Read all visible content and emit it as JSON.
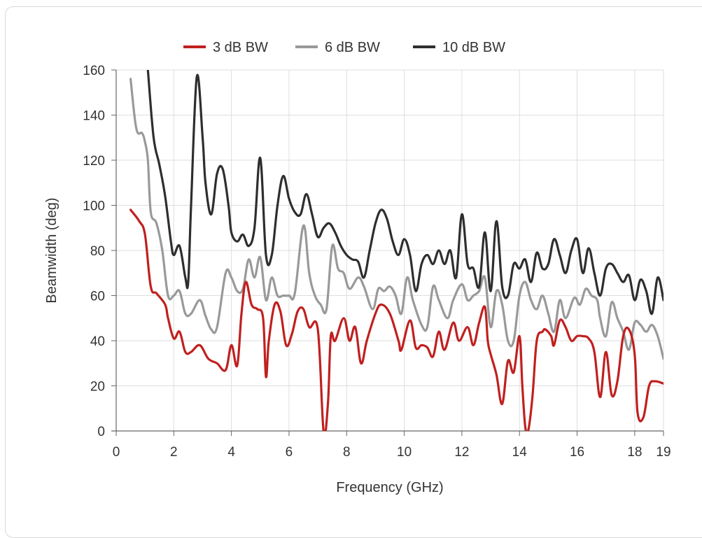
{
  "chart_data": {
    "type": "line",
    "xlabel": "Frequency (GHz)",
    "ylabel": "Beamwidth (deg)",
    "xlim": [
      0,
      19
    ],
    "ylim": [
      0,
      160
    ],
    "x_ticks": [
      0,
      2,
      4,
      6,
      8,
      10,
      12,
      14,
      16,
      18,
      19
    ],
    "y_ticks": [
      0,
      20,
      40,
      60,
      80,
      100,
      120,
      140,
      160
    ],
    "grid": true,
    "legend_position": "top-center",
    "series": [
      {
        "name": "3 dB BW",
        "color": "#c0201f",
        "points": [
          [
            0.5,
            98
          ],
          [
            0.8,
            93
          ],
          [
            1.0,
            87
          ],
          [
            1.2,
            64
          ],
          [
            1.4,
            61
          ],
          [
            1.7,
            56
          ],
          [
            1.8,
            50
          ],
          [
            2.0,
            41
          ],
          [
            2.2,
            44
          ],
          [
            2.4,
            35
          ],
          [
            2.6,
            35
          ],
          [
            2.9,
            38
          ],
          [
            3.2,
            32
          ],
          [
            3.5,
            30
          ],
          [
            3.8,
            27
          ],
          [
            4.0,
            38
          ],
          [
            4.2,
            29
          ],
          [
            4.35,
            52
          ],
          [
            4.5,
            66
          ],
          [
            4.7,
            56
          ],
          [
            4.9,
            54
          ],
          [
            5.1,
            50
          ],
          [
            5.2,
            24
          ],
          [
            5.3,
            40
          ],
          [
            5.5,
            56
          ],
          [
            5.7,
            53
          ],
          [
            5.9,
            38
          ],
          [
            6.1,
            43
          ],
          [
            6.3,
            53
          ],
          [
            6.5,
            54
          ],
          [
            6.7,
            46
          ],
          [
            7.0,
            45
          ],
          [
            7.2,
            0
          ],
          [
            7.35,
            12
          ],
          [
            7.45,
            42
          ],
          [
            7.6,
            40
          ],
          [
            7.9,
            50
          ],
          [
            8.1,
            40
          ],
          [
            8.3,
            46
          ],
          [
            8.5,
            30
          ],
          [
            8.7,
            40
          ],
          [
            9.0,
            52
          ],
          [
            9.2,
            56
          ],
          [
            9.5,
            52
          ],
          [
            9.8,
            40
          ],
          [
            9.9,
            36
          ],
          [
            10.2,
            49
          ],
          [
            10.4,
            37
          ],
          [
            10.6,
            38
          ],
          [
            10.8,
            37
          ],
          [
            11.0,
            33
          ],
          [
            11.2,
            44
          ],
          [
            11.4,
            36
          ],
          [
            11.7,
            48
          ],
          [
            11.9,
            40
          ],
          [
            12.2,
            46
          ],
          [
            12.4,
            38
          ],
          [
            12.6,
            48
          ],
          [
            12.8,
            55
          ],
          [
            12.9,
            40
          ],
          [
            13.0,
            34
          ],
          [
            13.2,
            25
          ],
          [
            13.4,
            12
          ],
          [
            13.6,
            31
          ],
          [
            13.8,
            26
          ],
          [
            14.0,
            42
          ],
          [
            14.1,
            20
          ],
          [
            14.2,
            2
          ],
          [
            14.3,
            0
          ],
          [
            14.45,
            15
          ],
          [
            14.6,
            40
          ],
          [
            14.8,
            44
          ],
          [
            14.9,
            45
          ],
          [
            15.1,
            42
          ],
          [
            15.2,
            38
          ],
          [
            15.4,
            49
          ],
          [
            15.6,
            46
          ],
          [
            15.8,
            40
          ],
          [
            16.0,
            42
          ],
          [
            16.2,
            42
          ],
          [
            16.4,
            41
          ],
          [
            16.6,
            35
          ],
          [
            16.8,
            15
          ],
          [
            17.0,
            35
          ],
          [
            17.2,
            16
          ],
          [
            17.4,
            22
          ],
          [
            17.6,
            42
          ],
          [
            17.8,
            45
          ],
          [
            18.0,
            34
          ],
          [
            18.1,
            8
          ],
          [
            18.3,
            6
          ],
          [
            18.5,
            20
          ],
          [
            18.7,
            22
          ],
          [
            19.0,
            21
          ]
        ]
      },
      {
        "name": "6 dB BW",
        "color": "#999999",
        "points": [
          [
            0.5,
            156
          ],
          [
            0.7,
            134
          ],
          [
            0.9,
            132
          ],
          [
            1.0,
            128
          ],
          [
            1.1,
            120
          ],
          [
            1.2,
            97
          ],
          [
            1.4,
            92
          ],
          [
            1.6,
            80
          ],
          [
            1.8,
            60
          ],
          [
            2.0,
            60
          ],
          [
            2.2,
            62
          ],
          [
            2.4,
            52
          ],
          [
            2.6,
            52
          ],
          [
            2.9,
            58
          ],
          [
            3.1,
            51
          ],
          [
            3.3,
            45
          ],
          [
            3.5,
            46
          ],
          [
            3.8,
            70
          ],
          [
            4.0,
            68
          ],
          [
            4.2,
            62
          ],
          [
            4.4,
            63
          ],
          [
            4.6,
            76
          ],
          [
            4.8,
            68
          ],
          [
            5.0,
            77
          ],
          [
            5.2,
            58
          ],
          [
            5.4,
            68
          ],
          [
            5.6,
            60
          ],
          [
            5.8,
            60
          ],
          [
            6.0,
            60
          ],
          [
            6.2,
            61
          ],
          [
            6.5,
            91
          ],
          [
            6.7,
            70
          ],
          [
            6.9,
            60
          ],
          [
            7.1,
            56
          ],
          [
            7.3,
            54
          ],
          [
            7.5,
            82
          ],
          [
            7.7,
            72
          ],
          [
            7.9,
            70
          ],
          [
            8.1,
            63
          ],
          [
            8.4,
            68
          ],
          [
            8.6,
            64
          ],
          [
            8.9,
            54
          ],
          [
            9.1,
            63
          ],
          [
            9.3,
            62
          ],
          [
            9.5,
            64
          ],
          [
            9.7,
            60
          ],
          [
            9.9,
            52
          ],
          [
            10.1,
            68
          ],
          [
            10.3,
            58
          ],
          [
            10.6,
            47
          ],
          [
            10.8,
            46
          ],
          [
            11.0,
            64
          ],
          [
            11.2,
            58
          ],
          [
            11.5,
            50
          ],
          [
            11.7,
            58
          ],
          [
            12.0,
            65
          ],
          [
            12.2,
            58
          ],
          [
            12.4,
            60
          ],
          [
            12.6,
            62
          ],
          [
            12.8,
            68
          ],
          [
            13.0,
            46
          ],
          [
            13.2,
            62
          ],
          [
            13.4,
            56
          ],
          [
            13.6,
            40
          ],
          [
            13.8,
            40
          ],
          [
            14.0,
            60
          ],
          [
            14.2,
            66
          ],
          [
            14.4,
            58
          ],
          [
            14.6,
            54
          ],
          [
            14.8,
            60
          ],
          [
            15.0,
            52
          ],
          [
            15.2,
            44
          ],
          [
            15.4,
            58
          ],
          [
            15.6,
            50
          ],
          [
            15.9,
            59
          ],
          [
            16.1,
            56
          ],
          [
            16.3,
            63
          ],
          [
            16.5,
            60
          ],
          [
            16.7,
            58
          ],
          [
            16.8,
            50
          ],
          [
            17.0,
            42
          ],
          [
            17.2,
            57
          ],
          [
            17.4,
            50
          ],
          [
            17.6,
            44
          ],
          [
            17.8,
            36
          ],
          [
            18.0,
            48
          ],
          [
            18.2,
            47
          ],
          [
            18.4,
            44
          ],
          [
            18.6,
            47
          ],
          [
            18.8,
            42
          ],
          [
            19.0,
            32
          ]
        ]
      },
      {
        "name": "10 dB BW",
        "color": "#2e2e2e",
        "points": [
          [
            1.1,
            160
          ],
          [
            1.3,
            130
          ],
          [
            1.5,
            118
          ],
          [
            1.7,
            104
          ],
          [
            1.9,
            84
          ],
          [
            2.0,
            78
          ],
          [
            2.2,
            82
          ],
          [
            2.4,
            68
          ],
          [
            2.5,
            66
          ],
          [
            2.6,
            100
          ],
          [
            2.8,
            157
          ],
          [
            3.0,
            130
          ],
          [
            3.1,
            110
          ],
          [
            3.3,
            96
          ],
          [
            3.5,
            114
          ],
          [
            3.7,
            116
          ],
          [
            3.9,
            100
          ],
          [
            4.0,
            88
          ],
          [
            4.2,
            84
          ],
          [
            4.4,
            87
          ],
          [
            4.6,
            82
          ],
          [
            4.8,
            90
          ],
          [
            5.0,
            121
          ],
          [
            5.2,
            78
          ],
          [
            5.4,
            78
          ],
          [
            5.6,
            100
          ],
          [
            5.8,
            113
          ],
          [
            6.0,
            103
          ],
          [
            6.2,
            97
          ],
          [
            6.4,
            96
          ],
          [
            6.6,
            105
          ],
          [
            6.8,
            96
          ],
          [
            7.0,
            86
          ],
          [
            7.2,
            90
          ],
          [
            7.4,
            92
          ],
          [
            7.6,
            88
          ],
          [
            7.8,
            82
          ],
          [
            8.0,
            78
          ],
          [
            8.2,
            76
          ],
          [
            8.4,
            75
          ],
          [
            8.6,
            68
          ],
          [
            8.8,
            80
          ],
          [
            9.0,
            92
          ],
          [
            9.2,
            98
          ],
          [
            9.4,
            94
          ],
          [
            9.6,
            84
          ],
          [
            9.8,
            78
          ],
          [
            10.0,
            85
          ],
          [
            10.2,
            78
          ],
          [
            10.4,
            62
          ],
          [
            10.6,
            74
          ],
          [
            10.8,
            78
          ],
          [
            11.0,
            74
          ],
          [
            11.2,
            80
          ],
          [
            11.4,
            74
          ],
          [
            11.6,
            80
          ],
          [
            11.8,
            68
          ],
          [
            12.0,
            96
          ],
          [
            12.2,
            74
          ],
          [
            12.4,
            72
          ],
          [
            12.6,
            64
          ],
          [
            12.8,
            88
          ],
          [
            13.0,
            62
          ],
          [
            13.2,
            93
          ],
          [
            13.4,
            64
          ],
          [
            13.6,
            60
          ],
          [
            13.8,
            74
          ],
          [
            14.0,
            72
          ],
          [
            14.2,
            76
          ],
          [
            14.4,
            66
          ],
          [
            14.6,
            79
          ],
          [
            14.8,
            72
          ],
          [
            15.0,
            74
          ],
          [
            15.2,
            85
          ],
          [
            15.4,
            78
          ],
          [
            15.6,
            70
          ],
          [
            15.8,
            80
          ],
          [
            16.0,
            85
          ],
          [
            16.2,
            70
          ],
          [
            16.4,
            81
          ],
          [
            16.6,
            70
          ],
          [
            16.8,
            60
          ],
          [
            17.0,
            72
          ],
          [
            17.2,
            74
          ],
          [
            17.4,
            70
          ],
          [
            17.6,
            66
          ],
          [
            17.8,
            69
          ],
          [
            18.0,
            58
          ],
          [
            18.2,
            67
          ],
          [
            18.4,
            62
          ],
          [
            18.6,
            52
          ],
          [
            18.8,
            68
          ],
          [
            19.0,
            58
          ]
        ]
      }
    ]
  }
}
